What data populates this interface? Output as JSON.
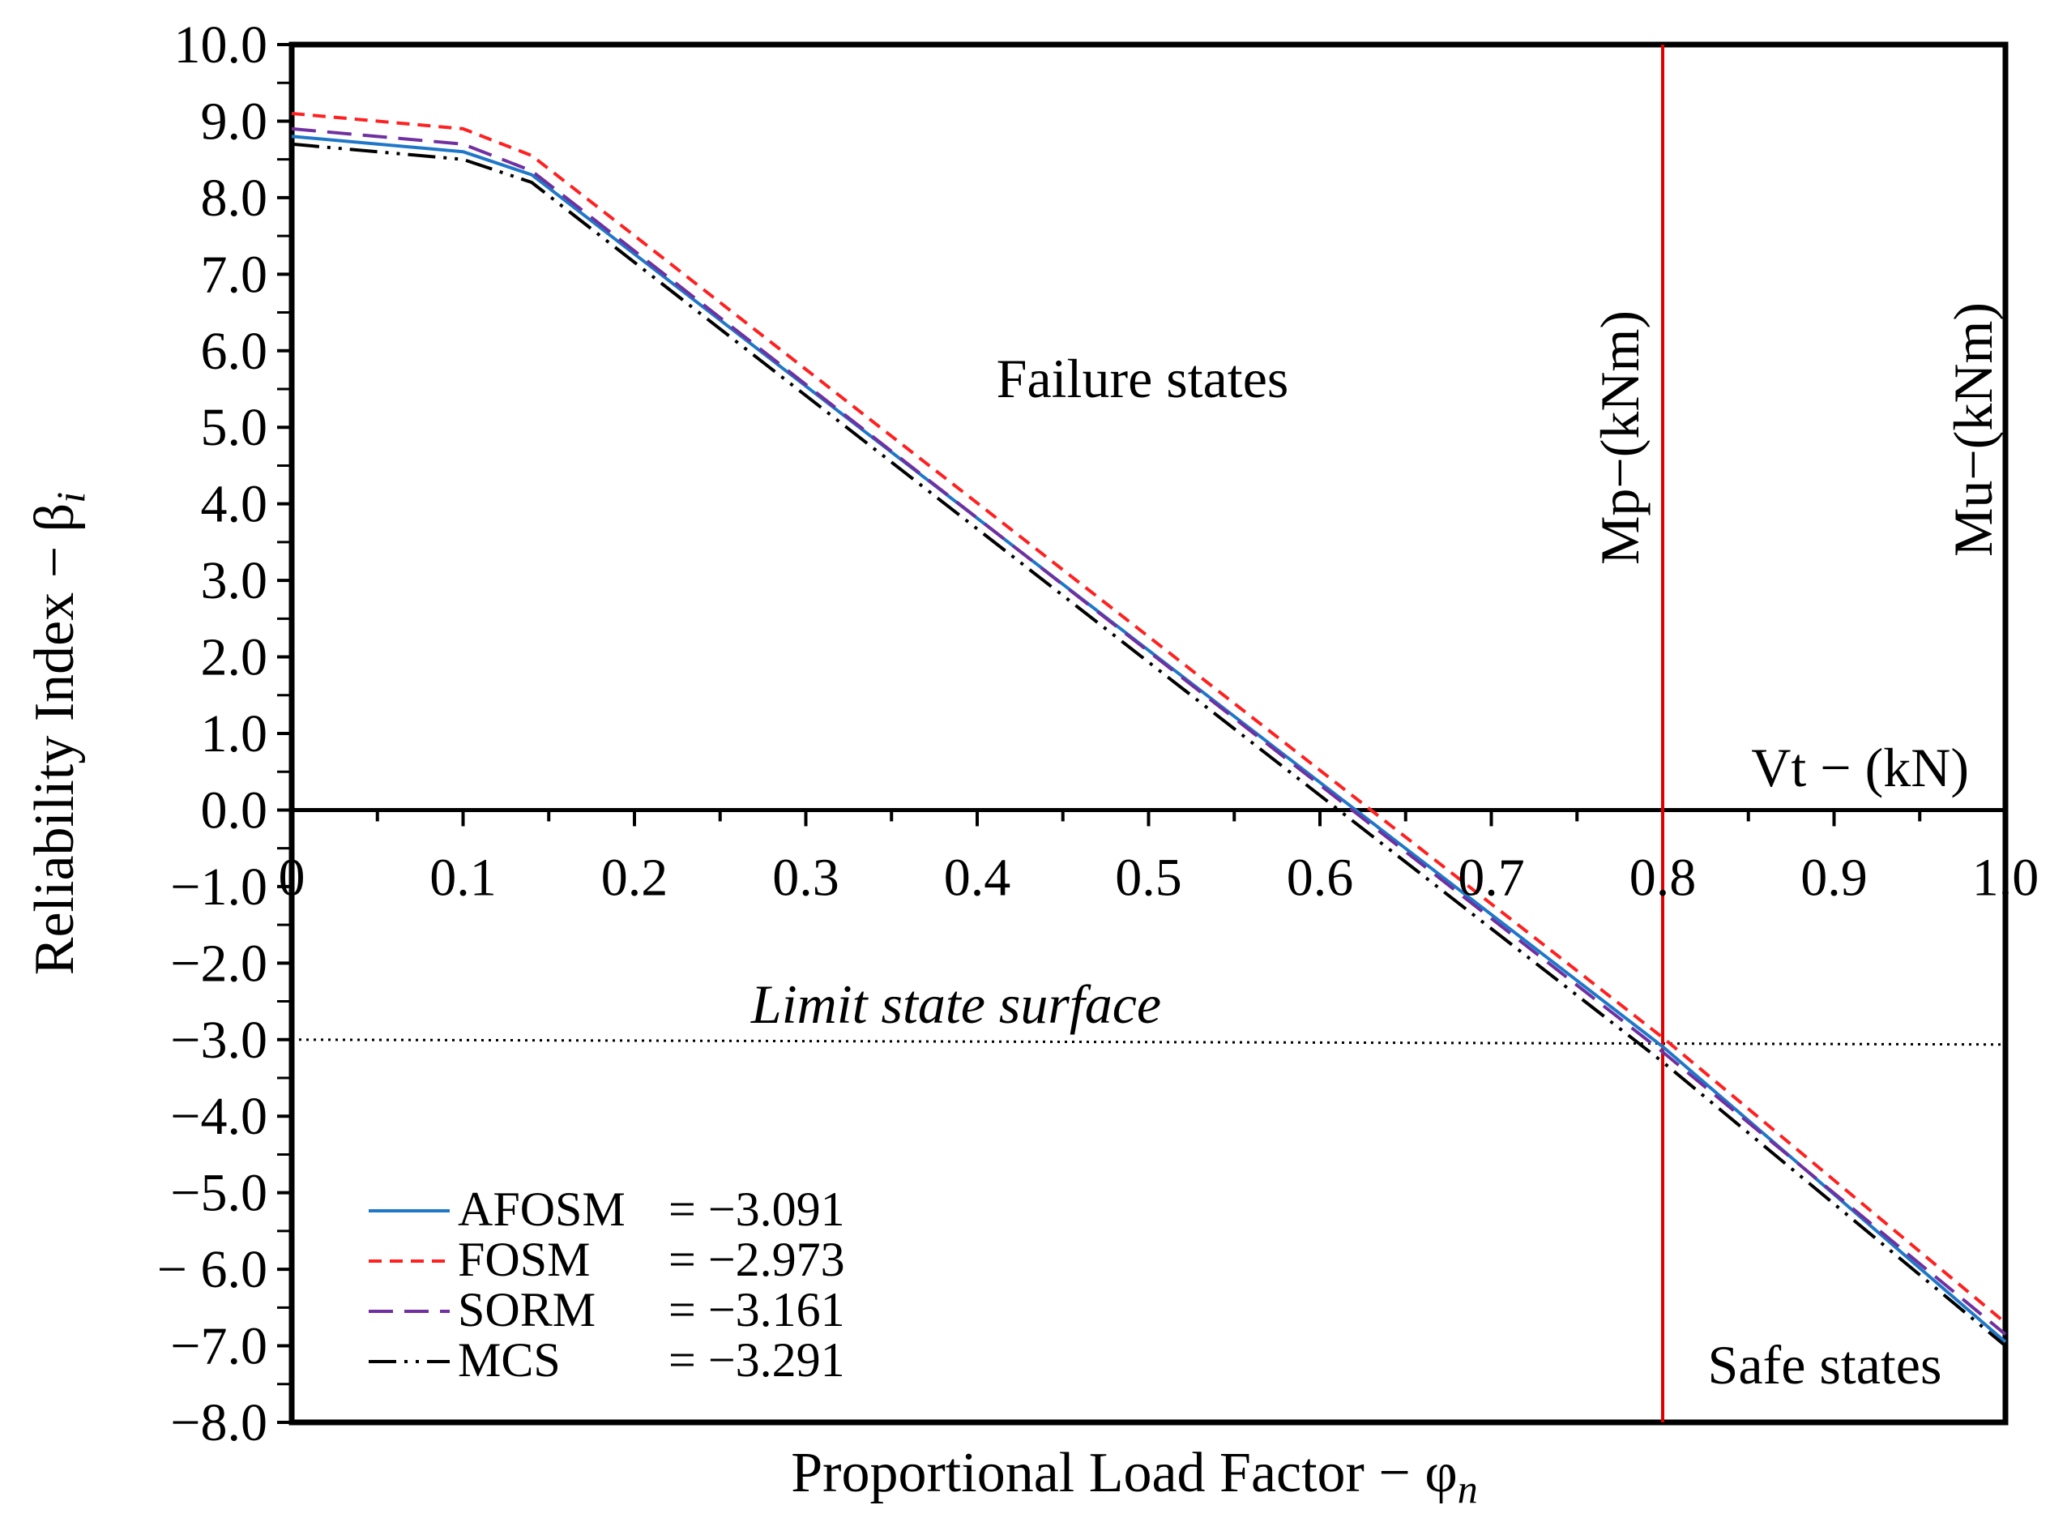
{
  "chart_data": {
    "type": "line",
    "title": "",
    "xlabel": "Proportional Load Factor − φ",
    "xlabel_sub": "n",
    "ylabel": "Reliability Index − β",
    "ylabel_sub": "i",
    "xlim": [
      0,
      1.0
    ],
    "ylim": [
      -8.0,
      10.0
    ],
    "x_ticks": [
      0,
      0.1,
      0.2,
      0.3,
      0.4,
      0.5,
      0.6,
      0.7,
      0.8,
      0.9,
      1.0
    ],
    "x_tick_labels": [
      "0",
      "0.1",
      "0.2",
      "0.3",
      "0.4",
      "0.5",
      "0.6",
      "0.7",
      "0.8",
      "0.9",
      "1.0"
    ],
    "y_ticks": [
      10,
      9,
      8,
      7,
      6,
      5,
      4,
      3,
      2,
      1,
      0,
      -1,
      -2,
      -3,
      -4,
      -5,
      -6,
      -7,
      -8
    ],
    "y_tick_labels": [
      "10.0",
      "9.0",
      "8.0",
      "7.0",
      "6.0",
      "5.0",
      "4.0",
      "3.0",
      "2.0",
      "1.0",
      "0.0",
      "−1.0",
      "−2.0",
      "−3.0",
      "−4.0",
      "−5.0",
      "− 6.0",
      "−7.0",
      "−8.0"
    ],
    "series": [
      {
        "name": "AFOSM",
        "value_label": "= −3.091",
        "color": "#1f77c8",
        "style": "solid",
        "x": [
          0,
          0.1,
          0.14,
          0.8,
          1.0
        ],
        "y": [
          8.8,
          8.6,
          8.3,
          -3.091,
          -6.95
        ]
      },
      {
        "name": "FOSM",
        "value_label": "= −2.973",
        "color": "#ff2020",
        "style": "dashed",
        "x": [
          0,
          0.1,
          0.14,
          0.8,
          1.0
        ],
        "y": [
          9.1,
          8.9,
          8.55,
          -2.973,
          -6.7
        ]
      },
      {
        "name": "SORM",
        "value_label": "= −3.161",
        "color": "#7030a0",
        "style": "longdash",
        "x": [
          0,
          0.1,
          0.14,
          0.8,
          1.0
        ],
        "y": [
          8.9,
          8.7,
          8.35,
          -3.161,
          -6.85
        ]
      },
      {
        "name": "MCS",
        "value_label": "= −3.291",
        "color": "#000000",
        "style": "dashdotdot",
        "x": [
          0,
          0.1,
          0.14,
          0.8,
          1.0
        ],
        "y": [
          8.7,
          8.5,
          8.2,
          -3.291,
          -7.0
        ]
      }
    ],
    "reference_lines": [
      {
        "type": "vertical",
        "x": 0.8,
        "color": "#e00000",
        "label": "Mp−(kNm)"
      },
      {
        "type": "horizontal",
        "y": -3.0,
        "style": "dotted",
        "label": "Limit state surface"
      }
    ],
    "annotations": [
      {
        "text": "Failure states"
      },
      {
        "text": "Safe states"
      },
      {
        "text": "Vt − (kN)"
      },
      {
        "text": "Mu−(kNm)"
      }
    ],
    "legend_position": "bottom-left",
    "grid": false
  }
}
